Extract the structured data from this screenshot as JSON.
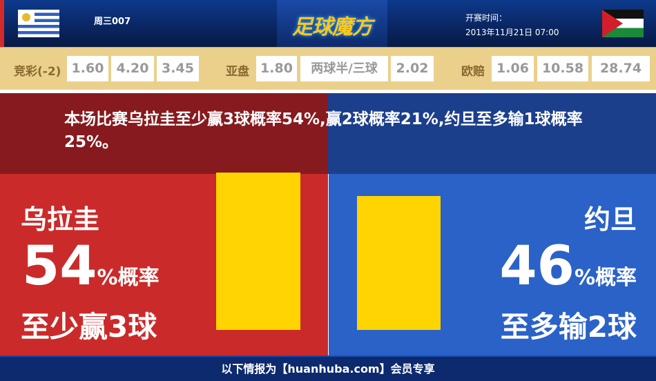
{
  "header": {
    "match_no": "周三007",
    "logo": "足球魔方",
    "time_label": "开赛时间：",
    "time_value": "2013年11月21日 07:00",
    "home_flag": "uruguay-flag",
    "away_flag": "jordan-flag"
  },
  "odds": {
    "jingcai": {
      "label": "竞彩(-2)",
      "values": [
        "1.60",
        "4.20",
        "3.45"
      ]
    },
    "yapan": {
      "label": "亚盘",
      "values": [
        "1.80",
        "两球半/三球",
        "2.02"
      ]
    },
    "oupei": {
      "label": "欧赔",
      "values": [
        "1.06",
        "10.58",
        "28.74"
      ]
    }
  },
  "summary": "本场比赛乌拉圭至少赢3球概率54%,赢2球概率21%,约旦至多输1球概率25%。",
  "home": {
    "name": "乌拉圭",
    "percent": "54",
    "percent_suffix": "%概率",
    "outcome": "至少赢3球",
    "value": 54
  },
  "away": {
    "name": "约旦",
    "percent": "46",
    "percent_suffix": "%概率",
    "outcome": "至多输2球",
    "value": 46
  },
  "colors": {
    "home": "#cb2a2a",
    "away": "#2a62c8",
    "bar": "#ffd400"
  },
  "footer": "以下情报为【huanhuba.com】会员专享"
}
